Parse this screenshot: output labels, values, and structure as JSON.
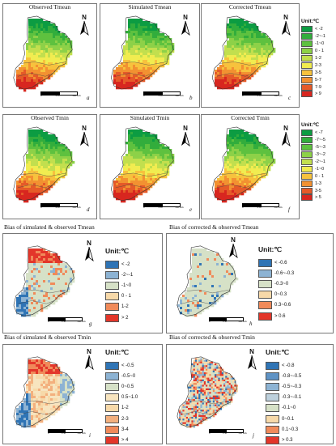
{
  "panels": {
    "a": {
      "title": "Observed Tmean",
      "label": "a"
    },
    "b": {
      "title": "Simulated Tmean",
      "label": "b"
    },
    "c": {
      "title": "Corrected Tmean",
      "label": "c"
    },
    "d": {
      "title": "Observed Tmin",
      "label": "d"
    },
    "e": {
      "title": "Simulated Tmin",
      "label": "e"
    },
    "f": {
      "title": "Corrected Tmin",
      "label": "f"
    },
    "g": {
      "title": "Bias of simulated & observed Tmean",
      "label": "g"
    },
    "h": {
      "title": "Bias of corrected & observed Tmean",
      "label": "h"
    },
    "i": {
      "title": "Bias of simulated & observed Tmin",
      "label": "i"
    },
    "j": {
      "title": "Bias of corrected & observed Tmin",
      "label": "j"
    }
  },
  "north_label": "N",
  "scale_labels": {
    "zero": "0",
    "mid": "250",
    "end": "500 km"
  },
  "legends": {
    "tmean": {
      "title": "Unit:℃",
      "items": [
        {
          "label": "< -2",
          "color": "#0c9c42"
        },
        {
          "label": "-2~-1",
          "color": "#32ad3c"
        },
        {
          "label": "-1~0",
          "color": "#5ec13f"
        },
        {
          "label": "0 - 1",
          "color": "#8dd148"
        },
        {
          "label": "1-2",
          "color": "#c2df4e"
        },
        {
          "label": "2-3",
          "color": "#f1ec50"
        },
        {
          "label": "3-5",
          "color": "#f7c23d"
        },
        {
          "label": "5-7",
          "color": "#f29131"
        },
        {
          "label": "7-9",
          "color": "#e55a28"
        },
        {
          "label": "> 9",
          "color": "#d8261f"
        }
      ]
    },
    "tmin": {
      "title": "Unit:℃",
      "items": [
        {
          "label": "< -7",
          "color": "#0c9c42"
        },
        {
          "label": "-7~-5",
          "color": "#32ad3c"
        },
        {
          "label": "-5~-3",
          "color": "#5ec13f"
        },
        {
          "label": "-3~-2",
          "color": "#8dd148"
        },
        {
          "label": "-2~-1",
          "color": "#c2df4e"
        },
        {
          "label": "-1~0",
          "color": "#f1ec50"
        },
        {
          "label": "0 - 1",
          "color": "#f7c23d"
        },
        {
          "label": "1-3",
          "color": "#f29131"
        },
        {
          "label": "3-5",
          "color": "#e55a28"
        },
        {
          "label": "> 5",
          "color": "#d8261f"
        }
      ]
    },
    "bias_sim_tmean": {
      "title": "Unit:℃",
      "items": [
        {
          "label": "< -2",
          "color": "#2f74b5"
        },
        {
          "label": "-2~-1",
          "color": "#8db3d3"
        },
        {
          "label": "-1~0",
          "color": "#d6e1c7"
        },
        {
          "label": "0 - 1",
          "color": "#f7d9a9"
        },
        {
          "label": "1-2",
          "color": "#f08a5a"
        },
        {
          "label": "> 2",
          "color": "#e3362a"
        }
      ]
    },
    "bias_cor_tmean": {
      "title": "Unit:℃",
      "items": [
        {
          "label": "< -0.6",
          "color": "#2f74b5"
        },
        {
          "label": "-0.6~-0.3",
          "color": "#8db3d3"
        },
        {
          "label": "-0.3~0",
          "color": "#d6e1c7"
        },
        {
          "label": "0~0.3",
          "color": "#f7d9a9"
        },
        {
          "label": "0.3~0.6",
          "color": "#f08a5a"
        },
        {
          "label": "> 0.6",
          "color": "#e3362a"
        }
      ]
    },
    "bias_sim_tmin": {
      "title": "Unit:℃",
      "items": [
        {
          "label": "< -0.5",
          "color": "#2f74b5"
        },
        {
          "label": "-0.5~0",
          "color": "#8db3d3"
        },
        {
          "label": "0~0.5",
          "color": "#d6e1c7"
        },
        {
          "label": "0.5~1.0",
          "color": "#f7e4bf"
        },
        {
          "label": "1-2",
          "color": "#f7d9a9"
        },
        {
          "label": "2-3",
          "color": "#f3b07e"
        },
        {
          "label": "3-4",
          "color": "#f08a5a"
        },
        {
          "label": "> 4",
          "color": "#e3362a"
        }
      ]
    },
    "bias_cor_tmin": {
      "title": "Unit:℃",
      "items": [
        {
          "label": "< -0.8",
          "color": "#2f74b5"
        },
        {
          "label": "-0.8~-0.5",
          "color": "#5f93c5"
        },
        {
          "label": "-0.5~-0.3",
          "color": "#8db3d3"
        },
        {
          "label": "-0.3~-0.1",
          "color": "#bdd0dc"
        },
        {
          "label": "-0.1~0",
          "color": "#d6e1c7"
        },
        {
          "label": "0~0.1",
          "color": "#f7d9a9"
        },
        {
          "label": "0.1~0.3",
          "color": "#f08a5a"
        },
        {
          "label": "> 0.3",
          "color": "#e3362a"
        }
      ]
    }
  }
}
